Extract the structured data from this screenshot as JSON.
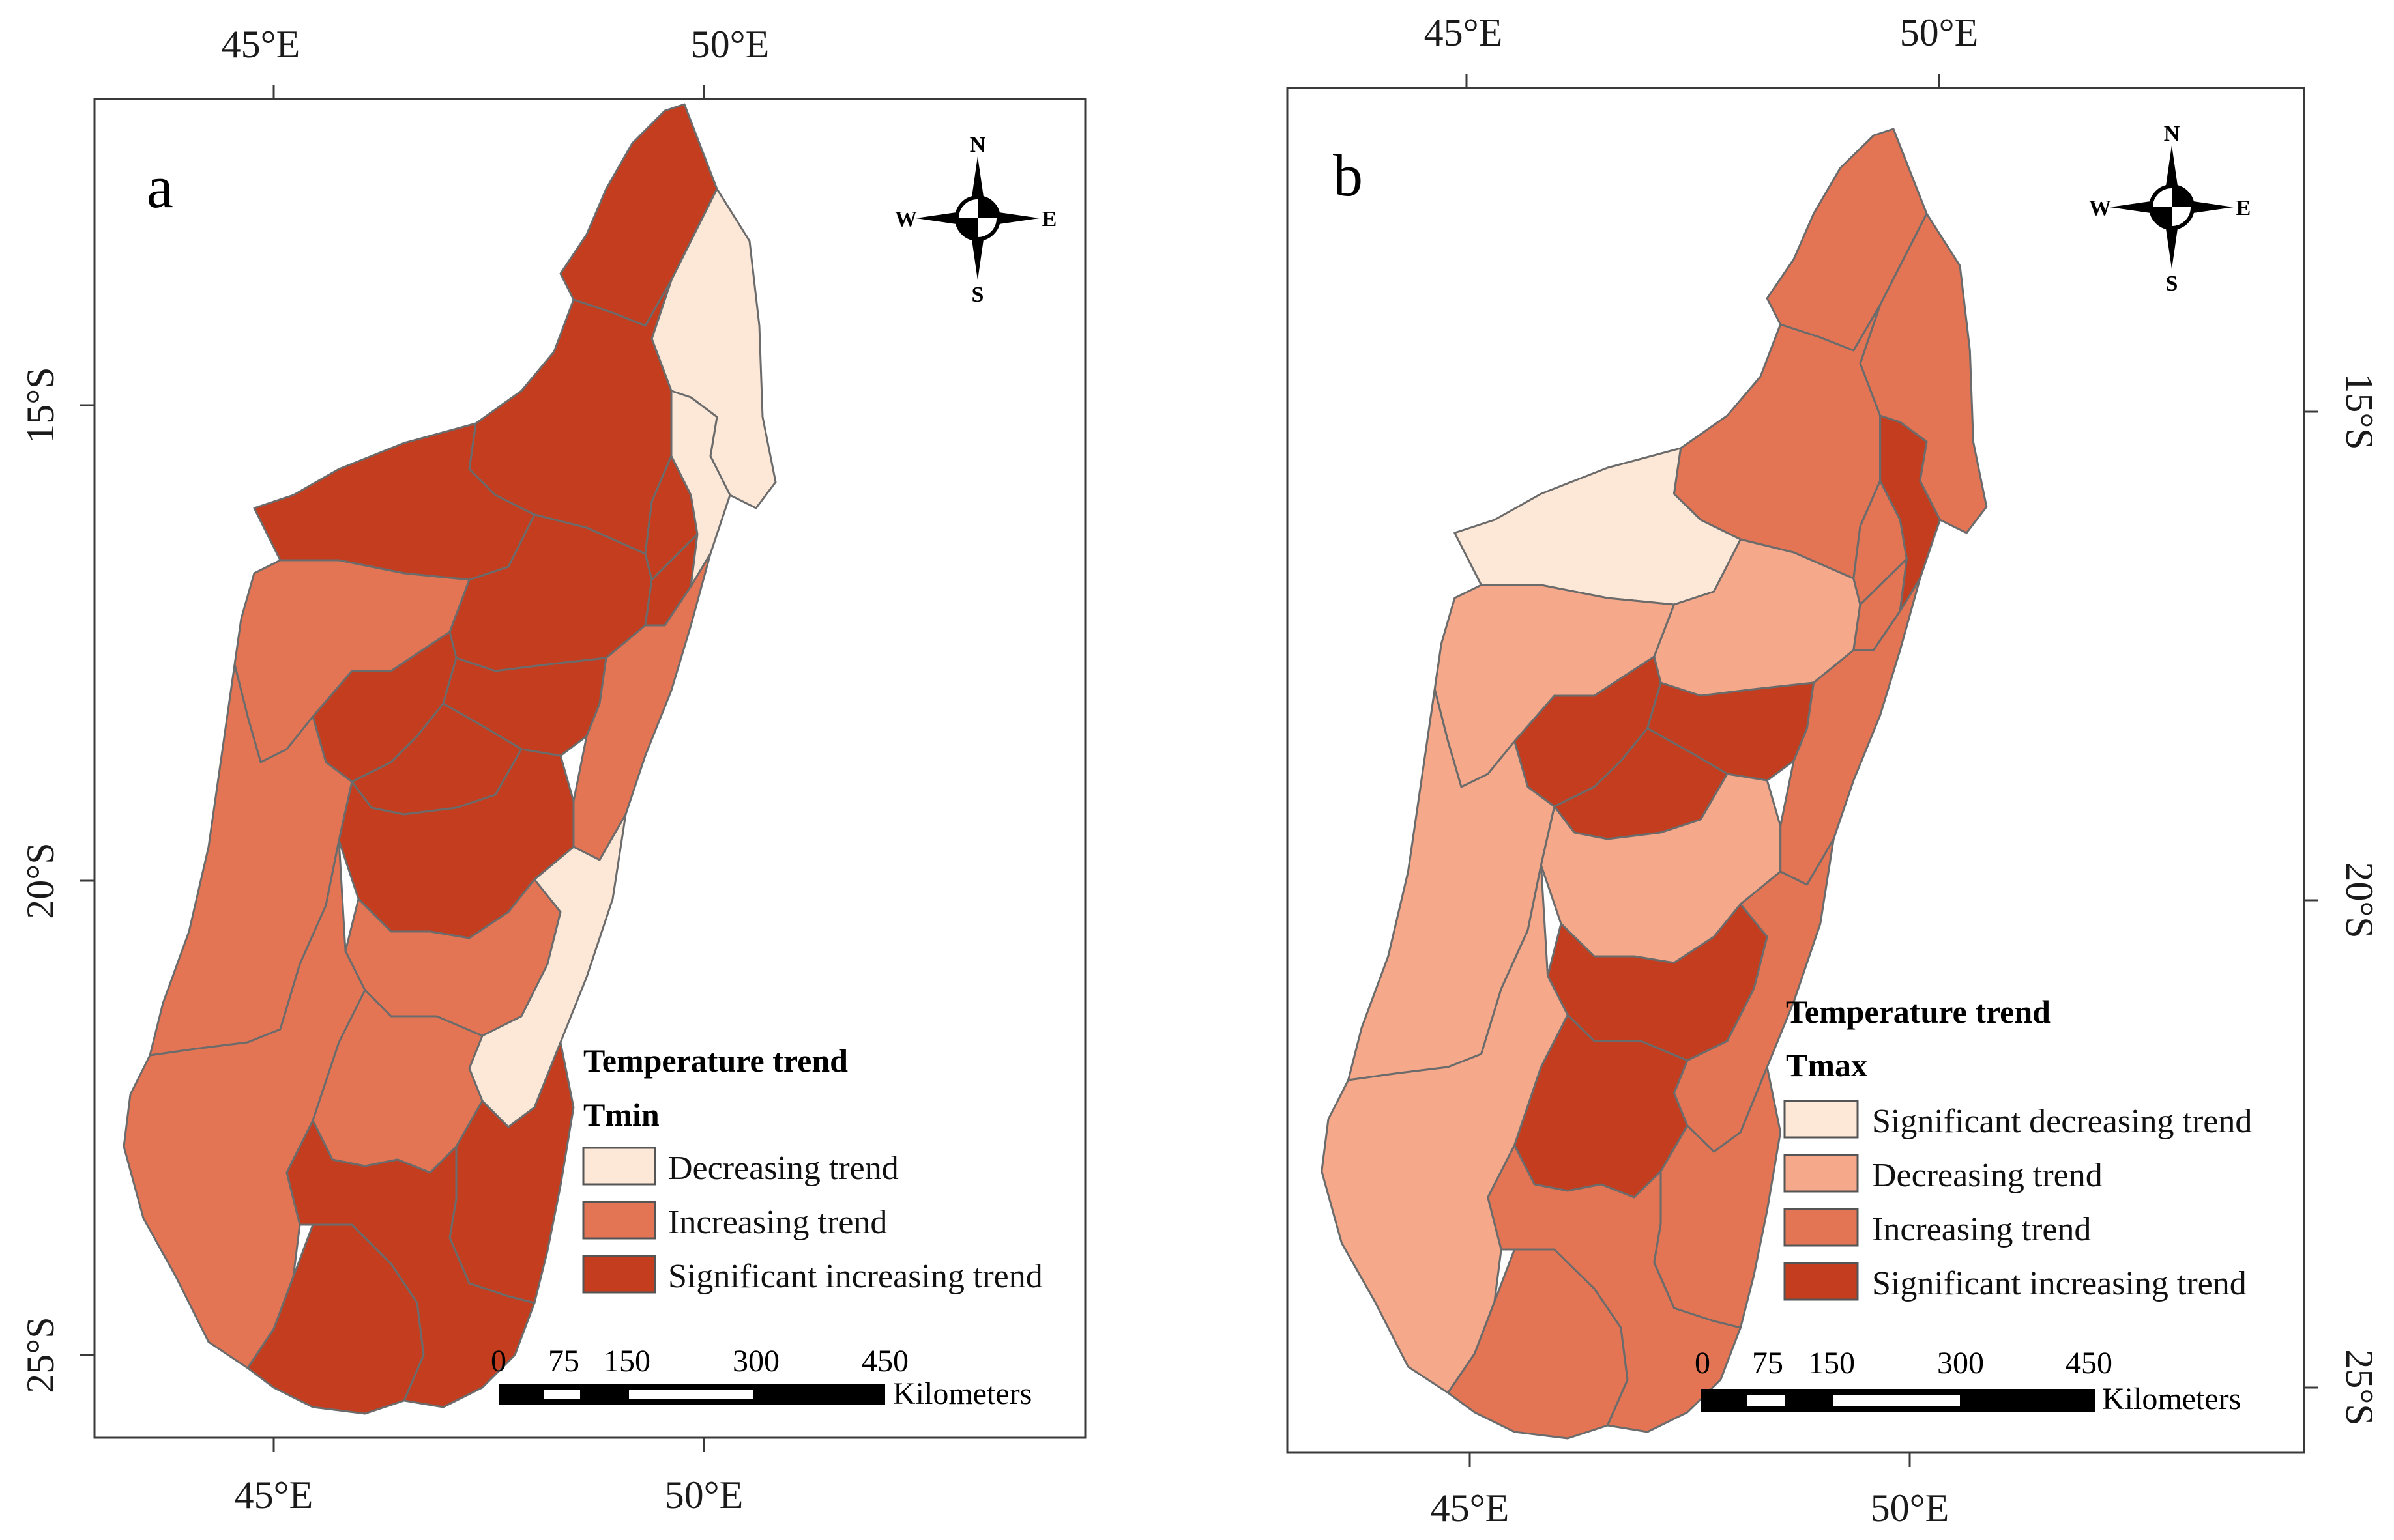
{
  "colors": {
    "sig_decreasing": "#fde8d8",
    "decreasing": "#f5a98a",
    "increasing": "#e37555",
    "sig_increasing": "#c43d1f",
    "outline": "#6b6b6b"
  },
  "axes": {
    "lon_labels": [
      "45°E",
      "50°E"
    ],
    "lat_labels": [
      "15°S",
      "20°S",
      "25°S"
    ]
  },
  "scale_bar": {
    "ticks": [
      "0",
      "75",
      "150",
      "300",
      "450"
    ],
    "unit": "Kilometers"
  },
  "compass": {
    "n": "N",
    "s": "S",
    "e": "E",
    "w": "W"
  },
  "panels": [
    {
      "letter": "a",
      "legend": {
        "title": "Temperature trend",
        "variable": "Tmin",
        "items": [
          {
            "label": "Decreasing trend",
            "class": "sig_decreasing"
          },
          {
            "label": "Increasing trend",
            "class": "increasing"
          },
          {
            "label": "Significant increasing trend",
            "class": "sig_increasing"
          }
        ]
      },
      "regions": {
        "diana": "sig_increasing",
        "sava": "sig_decreasing",
        "sofia": "sig_increasing",
        "boeny": "sig_increasing",
        "betsiboka": "sig_increasing",
        "alaotra": "sig_increasing",
        "analanjirofo": "sig_decreasing",
        "melaky": "increasing",
        "bongolava": "sig_increasing",
        "analamanga": "sig_increasing",
        "itasy": "sig_increasing",
        "atsinanana": "increasing",
        "menabe": "increasing",
        "vakinankaratra": "sig_increasing",
        "amoronimania": "increasing",
        "vatovavy": "sig_decreasing",
        "atsimo_andrefana": "increasing",
        "ihorombe": "increasing",
        "haute_matsiatra": "increasing",
        "atsimo_atsinanana": "sig_increasing",
        "androy": "sig_increasing",
        "anosy": "sig_increasing"
      }
    },
    {
      "letter": "b",
      "legend": {
        "title": "Temperature trend",
        "variable": "Tmax",
        "items": [
          {
            "label": "Significant decreasing trend",
            "class": "sig_decreasing"
          },
          {
            "label": "Decreasing trend",
            "class": "decreasing"
          },
          {
            "label": "Increasing trend",
            "class": "increasing"
          },
          {
            "label": "Significant increasing trend",
            "class": "sig_increasing"
          }
        ]
      },
      "regions": {
        "diana": "increasing",
        "sava": "increasing",
        "sofia": "increasing",
        "boeny": "sig_decreasing",
        "betsiboka": "decreasing",
        "alaotra": "increasing",
        "analanjirofo": "sig_increasing",
        "melaky": "decreasing",
        "bongolava": "sig_increasing",
        "analamanga": "sig_increasing",
        "itasy": "sig_increasing",
        "atsinanana": "increasing",
        "menabe": "decreasing",
        "vakinankaratra": "decreasing",
        "amoronimania": "sig_increasing",
        "vatovavy": "increasing",
        "atsimo_andrefana": "decreasing",
        "ihorombe": "sig_increasing",
        "haute_matsiatra": "sig_increasing",
        "atsimo_atsinanana": "increasing",
        "androy": "increasing",
        "anosy": "increasing"
      }
    }
  ]
}
